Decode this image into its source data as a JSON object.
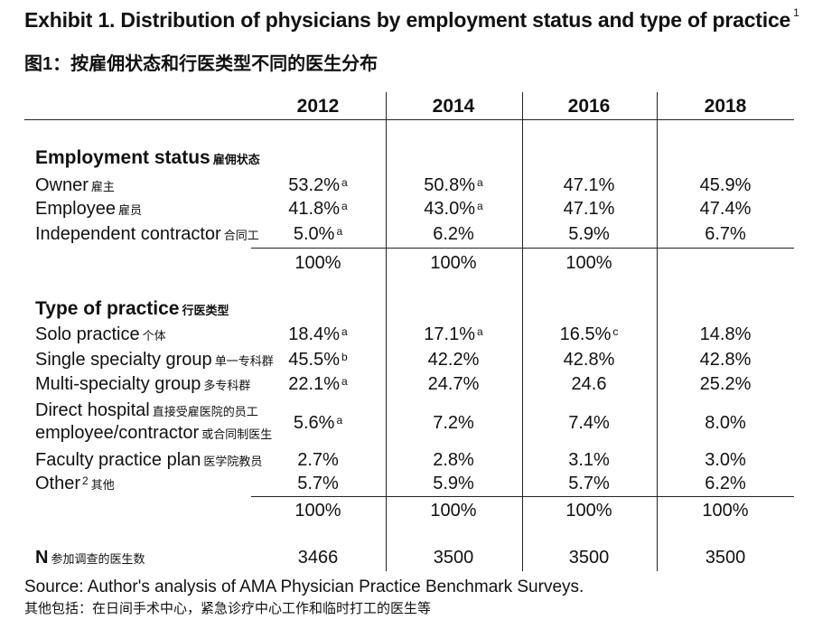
{
  "title": "Exhibit 1. Distribution of physicians by employment status and type of practice",
  "title_note": "1",
  "subtitle": "图1：按雇佣状态和行医类型不同的医生分布",
  "years": [
    "2012",
    "2014",
    "2016",
    "2018"
  ],
  "employment": {
    "label": "Employment status",
    "label_cn": "雇佣状态",
    "rows": [
      {
        "en": "Owner",
        "cn": "雇主",
        "v": [
          "53.2%",
          "50.8%",
          "47.1%",
          "45.9%"
        ],
        "s": [
          "a",
          "a",
          "",
          ""
        ]
      },
      {
        "en": "Employee",
        "cn": "雇员",
        "v": [
          "41.8%",
          "43.0%",
          "47.1%",
          "47.4%"
        ],
        "s": [
          "a",
          "a",
          "",
          ""
        ]
      },
      {
        "en": "Independent contractor",
        "cn": "合同工",
        "v": [
          "5.0%",
          "6.2%",
          "5.9%",
          "6.7%"
        ],
        "s": [
          "a",
          "",
          "",
          ""
        ]
      }
    ],
    "totals": [
      "100%",
      "100%",
      "100%",
      ""
    ]
  },
  "practice": {
    "label": "Type of practice",
    "label_cn": "行医类型",
    "rows": [
      {
        "en": "Solo practice",
        "cn": "个体",
        "v": [
          "18.4%",
          "17.1%",
          "16.5%",
          "14.8%"
        ],
        "s": [
          "a",
          "a",
          "c",
          ""
        ]
      },
      {
        "en": "Single specialty group",
        "cn": "单一专科群",
        "v": [
          "45.5%",
          "42.2%",
          "42.8%",
          "42.8%"
        ],
        "s": [
          "b",
          "",
          "",
          ""
        ]
      },
      {
        "en": "Multi-specialty group",
        "cn": "多专科群",
        "v": [
          "22.1%",
          "24.7%",
          "24.6",
          "25.2%"
        ],
        "s": [
          "a",
          "",
          "",
          ""
        ]
      },
      {
        "en": "Direct hospital",
        "cn": "直接受雇医院的员工",
        "en2": "employee/contractor",
        "cn2": "或合同制医生",
        "v": [
          "5.6%",
          "7.2%",
          "7.4%",
          "8.0%"
        ],
        "s": [
          "a",
          "",
          "",
          ""
        ]
      },
      {
        "en": "Faculty practice plan",
        "cn": "医学院教员",
        "v": [
          "2.7%",
          "2.8%",
          "3.1%",
          "3.0%"
        ],
        "s": [
          "",
          "",
          "",
          ""
        ]
      },
      {
        "en": "Other",
        "sup": "2",
        "cn": "其他",
        "v": [
          "5.7%",
          "5.9%",
          "5.7%",
          "6.2%"
        ],
        "s": [
          "",
          "",
          "",
          ""
        ]
      }
    ],
    "totals": [
      "100%",
      "100%",
      "100%",
      "100%"
    ]
  },
  "n_row": {
    "label": "N",
    "cn": "参加调查的医生数",
    "v": [
      "3466",
      "3500",
      "3500",
      "3500"
    ]
  },
  "source": "Source: Author's analysis of AMA Physician Practice Benchmark Surveys.",
  "note_cn": "其他包括：在日间手术中心，紧急诊疗中心工作和临时打工的医生等"
}
